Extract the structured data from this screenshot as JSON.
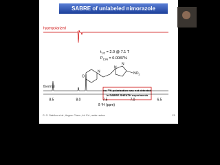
{
  "slide": {
    "title": "SABRE of unlabeled nimorazole",
    "hyper_label": "hyperpolarized",
    "thermal_label": "thermal",
    "t_half": {
      "main": "t",
      "sub": "1/2",
      "rest": " = 2.0 @ 7.1 T"
    },
    "pol": {
      "main": "P",
      "sub": "15N",
      "rest": " = 0.0087%"
    },
    "molecule": {
      "o": "O",
      "n1": "N",
      "n2": "N",
      "n3": "N",
      "no2": "NO",
      "no2_sub": "2"
    },
    "note": {
      "line1_pre": "no ",
      "line1_sup": "15",
      "line1_post": "N polarization was not detected",
      "line2": "in SABRE-SHEATH experiments"
    },
    "x_ticks": [
      "8.5",
      "8.0",
      "7.5",
      "7.0",
      "6.5"
    ],
    "x_label": {
      "pre": "δ ",
      "sup": "1",
      "post": "H (ppm)"
    },
    "citation": "G. G. Salnikov et al., Angew. Chem., Int. Ed., under review",
    "page": "13"
  }
}
